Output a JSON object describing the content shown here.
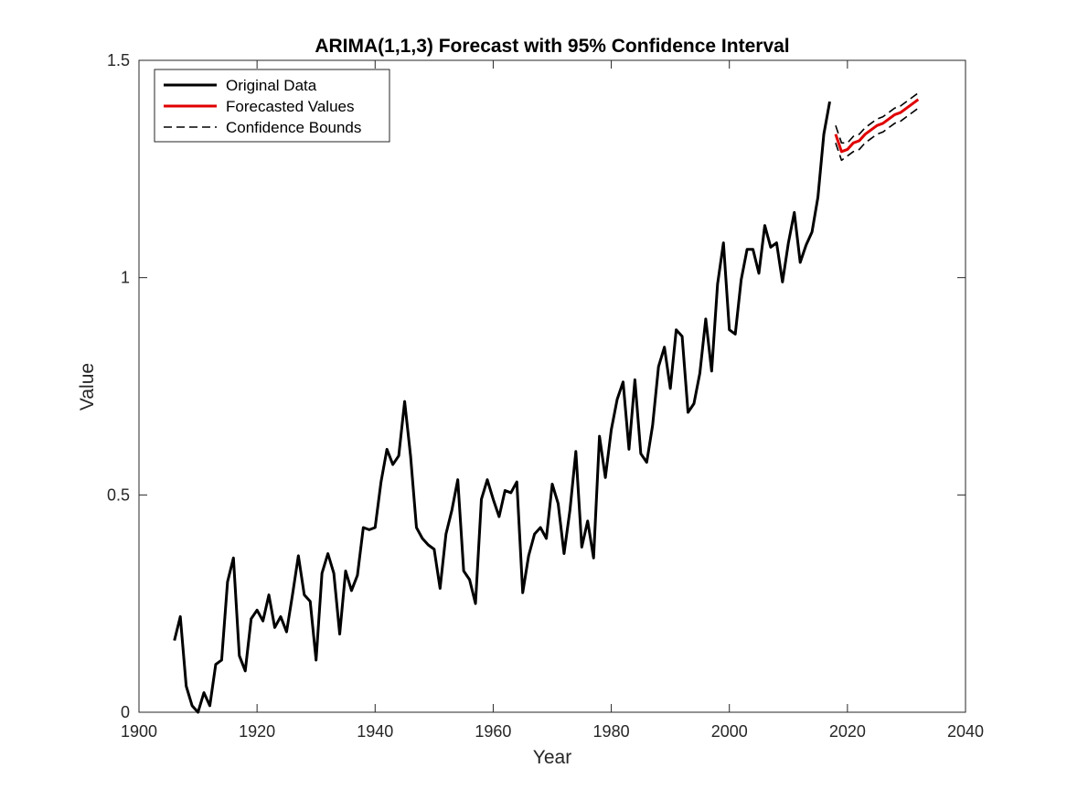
{
  "chart_data": {
    "type": "line",
    "title": "ARIMA(1,1,3) Forecast with 95% Confidence Interval",
    "xlabel": "Year",
    "ylabel": "Value",
    "xlim": [
      1900,
      2040
    ],
    "ylim": [
      0,
      1.5
    ],
    "xticks": [
      1900,
      1920,
      1940,
      1960,
      1980,
      2000,
      2020,
      2040
    ],
    "yticks": [
      0,
      0.5,
      1,
      1.5
    ],
    "ytick_labels": [
      "0",
      "0.5",
      "1",
      "1.5"
    ],
    "grid": false,
    "legend_position": "top-left",
    "series": [
      {
        "name": "Original Data",
        "color": "#000000",
        "style": "solid",
        "x": [
          1906,
          1907,
          1908,
          1909,
          1910,
          1911,
          1912,
          1913,
          1914,
          1915,
          1916,
          1917,
          1918,
          1919,
          1920,
          1921,
          1922,
          1923,
          1924,
          1925,
          1926,
          1927,
          1928,
          1929,
          1930,
          1931,
          1932,
          1933,
          1934,
          1935,
          1936,
          1937,
          1938,
          1939,
          1940,
          1941,
          1942,
          1943,
          1944,
          1945,
          1946,
          1947,
          1948,
          1949,
          1950,
          1951,
          1952,
          1953,
          1954,
          1955,
          1956,
          1957,
          1958,
          1959,
          1960,
          1961,
          1962,
          1963,
          1964,
          1965,
          1966,
          1967,
          1968,
          1969,
          1970,
          1971,
          1972,
          1973,
          1974,
          1975,
          1976,
          1977,
          1978,
          1979,
          1980,
          1981,
          1982,
          1983,
          1984,
          1985,
          1986,
          1987,
          1988,
          1989,
          1990,
          1991,
          1992,
          1993,
          1994,
          1995,
          1996,
          1997,
          1998,
          1999,
          2000,
          2001,
          2002,
          2003,
          2004,
          2005,
          2006,
          2007,
          2008,
          2009,
          2010,
          2011,
          2012,
          2013,
          2014,
          2015,
          2016,
          2017
        ],
        "values": [
          0.165,
          0.22,
          0.06,
          0.015,
          0.0,
          0.045,
          0.015,
          0.11,
          0.12,
          0.3,
          0.355,
          0.13,
          0.095,
          0.215,
          0.235,
          0.21,
          0.27,
          0.195,
          0.22,
          0.185,
          0.27,
          0.36,
          0.27,
          0.255,
          0.12,
          0.32,
          0.365,
          0.32,
          0.18,
          0.325,
          0.28,
          0.315,
          0.425,
          0.42,
          0.425,
          0.53,
          0.605,
          0.57,
          0.59,
          0.715,
          0.59,
          0.425,
          0.4,
          0.385,
          0.375,
          0.285,
          0.41,
          0.465,
          0.535,
          0.325,
          0.305,
          0.25,
          0.49,
          0.535,
          0.49,
          0.45,
          0.51,
          0.505,
          0.53,
          0.275,
          0.36,
          0.41,
          0.425,
          0.4,
          0.525,
          0.48,
          0.365,
          0.465,
          0.6,
          0.38,
          0.44,
          0.355,
          0.635,
          0.54,
          0.65,
          0.72,
          0.76,
          0.605,
          0.765,
          0.595,
          0.575,
          0.66,
          0.795,
          0.84,
          0.745,
          0.88,
          0.865,
          0.69,
          0.71,
          0.78,
          0.905,
          0.785,
          0.985,
          1.08,
          0.88,
          0.87,
          0.995,
          1.065,
          1.065,
          1.01,
          1.12,
          1.07,
          1.08,
          0.99,
          1.08,
          1.15,
          1.035,
          1.075,
          1.105,
          1.185,
          1.33,
          1.405
        ]
      },
      {
        "name": "Forecasted Values",
        "color": "#e00000",
        "style": "solid",
        "x": [
          2018,
          2019,
          2020,
          2021,
          2022,
          2023,
          2024,
          2025,
          2026,
          2027,
          2028,
          2029,
          2030,
          2031,
          2032
        ],
        "values": [
          1.33,
          1.29,
          1.295,
          1.31,
          1.315,
          1.33,
          1.34,
          1.35,
          1.355,
          1.365,
          1.375,
          1.38,
          1.39,
          1.4,
          1.41
        ]
      },
      {
        "name": "Confidence Bounds",
        "color": "#000000",
        "style": "dashed",
        "x": [
          2018,
          2019,
          2020,
          2021,
          2022,
          2023,
          2024,
          2025,
          2026,
          2027,
          2028,
          2029,
          2030,
          2031,
          2032
        ],
        "values": [
          1.35,
          1.31,
          1.31,
          1.325,
          1.33,
          1.345,
          1.355,
          1.365,
          1.37,
          1.38,
          1.39,
          1.395,
          1.405,
          1.415,
          1.425
        ]
      },
      {
        "name": "",
        "color": "#000000",
        "style": "dashed",
        "x": [
          2018,
          2019,
          2020,
          2021,
          2022,
          2023,
          2024,
          2025,
          2026,
          2027,
          2028,
          2029,
          2030,
          2031,
          2032
        ],
        "values": [
          1.31,
          1.27,
          1.28,
          1.29,
          1.295,
          1.31,
          1.32,
          1.33,
          1.335,
          1.345,
          1.355,
          1.36,
          1.37,
          1.38,
          1.39
        ]
      }
    ]
  }
}
